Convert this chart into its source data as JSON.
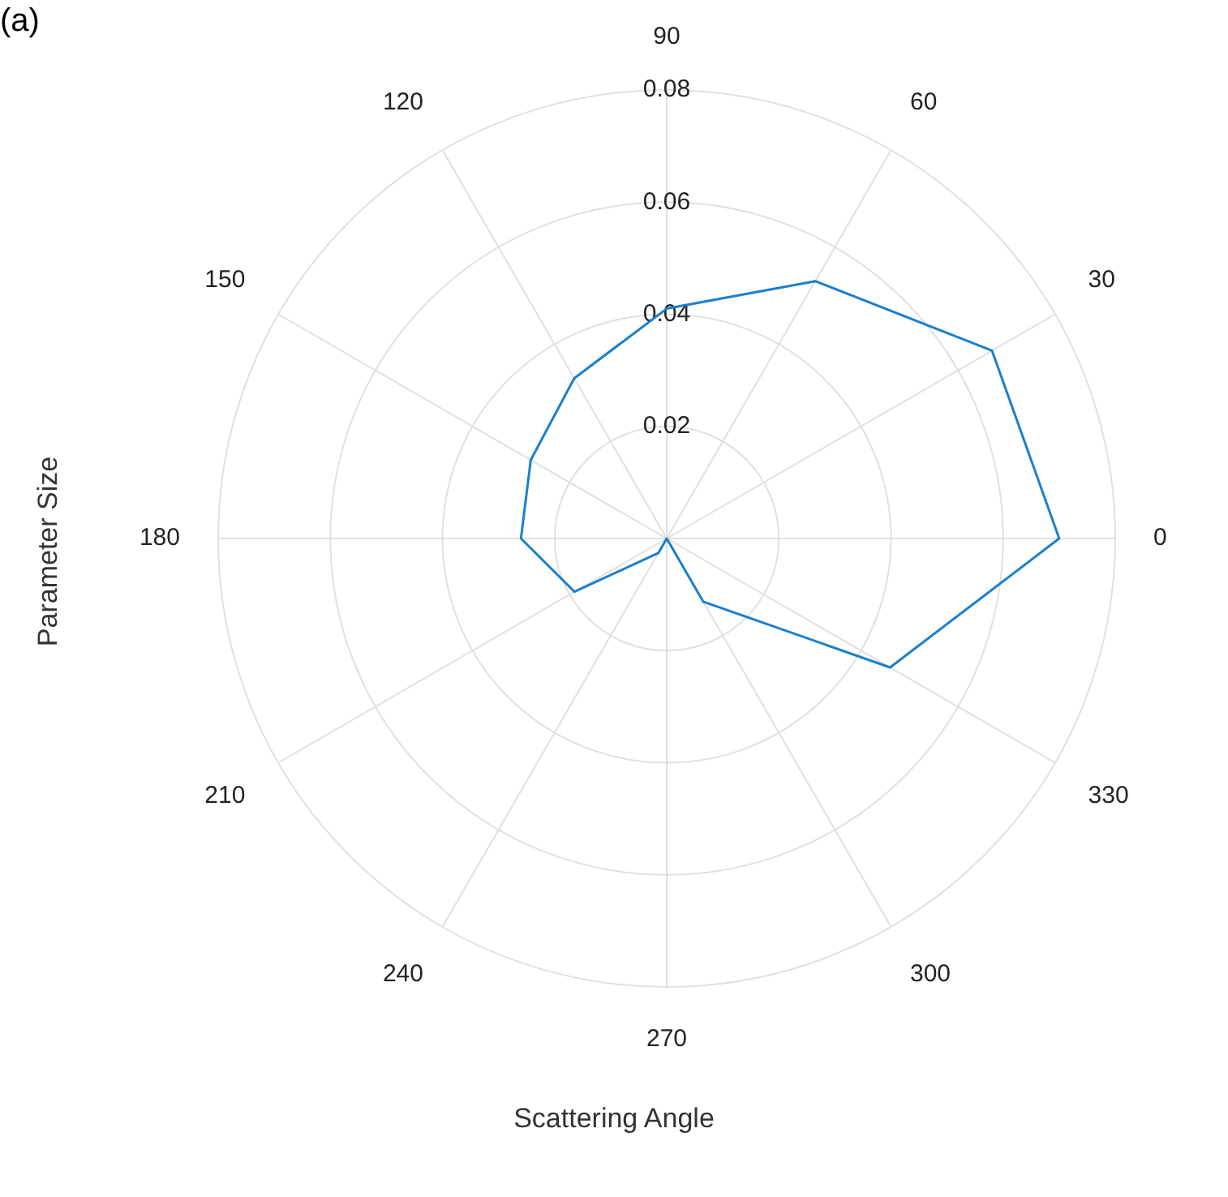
{
  "chart_data": {
    "type": "radar",
    "xlabel": "Scattering Angle",
    "ylabel": "Parameter Size",
    "annotations": [
      "(a)"
    ],
    "categories": [
      "90",
      "60",
      "30",
      "0",
      "330",
      "300",
      "270",
      "240",
      "210",
      "180",
      "150",
      "120"
    ],
    "series": [
      {
        "color": "#1b7fcc",
        "values": [
          0.041,
          0.053,
          0.067,
          0.07,
          0.046,
          0.013,
          0,
          0.003,
          0.019,
          0.026,
          0.028,
          0.033
        ]
      }
    ],
    "ylim": [
      0,
      0.08
    ],
    "yticks": [
      0.02,
      0.04,
      0.06,
      0.08
    ],
    "grid": true,
    "marker": "none",
    "line_style": "solid"
  }
}
